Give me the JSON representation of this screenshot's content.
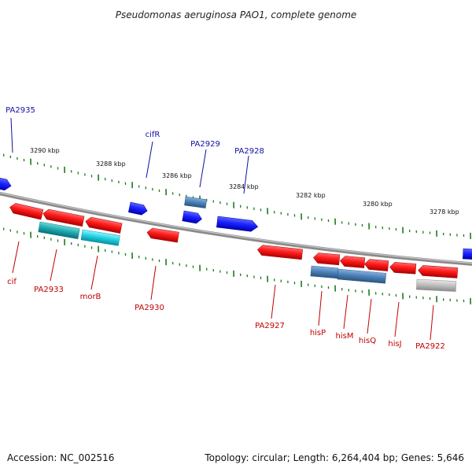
{
  "title": "Pseudomonas aeruginosa PAO1, complete genome",
  "footer": {
    "accession": "Accession: NC_002516",
    "summary": "Topology: circular; Length: 6,264,404 bp; Genes: 5,646"
  },
  "colors": {
    "forward_gene": "#0a14e6",
    "reverse_gene": "#e60a0a",
    "cyan_gene": "#17c4d6",
    "steel_gene": "#4a7fb5",
    "gray_gene": "#b8b8b8",
    "backbone": "#8a8a8a",
    "tick": "#1e7a1e",
    "forward_label": "#1010a0",
    "reverse_label": "#c00000"
  },
  "scale_labels": [
    "3290 kbp",
    "3288 kbp",
    "3286 kbp",
    "3284 kbp",
    "3282 kbp",
    "3280 kbp",
    "3278 kbp"
  ],
  "forward_labels": [
    "PA2935",
    "cifR",
    "PA2929",
    "PA2928"
  ],
  "reverse_labels": [
    "cif",
    "PA2933",
    "morB",
    "PA2930",
    "PA2927",
    "hisP",
    "hisM",
    "hisQ",
    "hisJ",
    "PA2922"
  ]
}
